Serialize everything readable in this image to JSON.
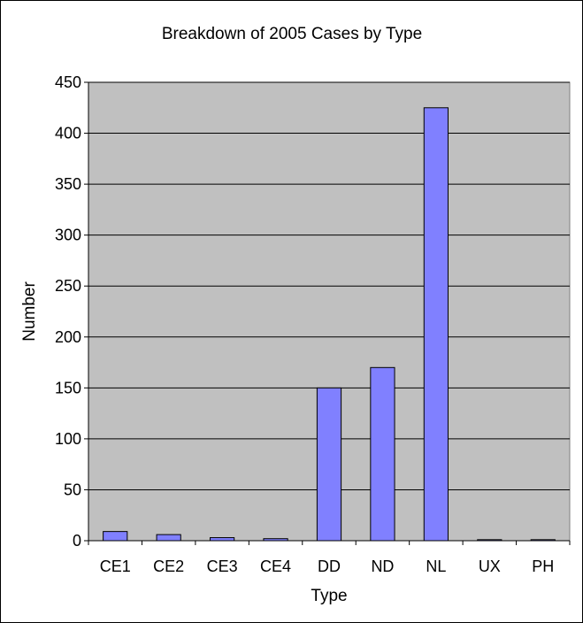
{
  "chart_data": {
    "type": "bar",
    "title": "Breakdown of 2005 Cases by Type",
    "xlabel": "Type",
    "ylabel": "Number",
    "categories": [
      "CE1",
      "CE2",
      "CE3",
      "CE4",
      "DD",
      "ND",
      "NL",
      "UX",
      "PH"
    ],
    "values": [
      9,
      6,
      3,
      2,
      150,
      170,
      425,
      1,
      1
    ],
    "ylim": [
      0,
      450
    ],
    "yticks": [
      0,
      50,
      100,
      150,
      200,
      250,
      300,
      350,
      400,
      450
    ],
    "grid": true,
    "legend": "none",
    "colors": {
      "bar_fill": "#8080ff",
      "bar_stroke": "#000000",
      "plot_background": "#c0c0c0",
      "gridline": "#000000"
    }
  }
}
